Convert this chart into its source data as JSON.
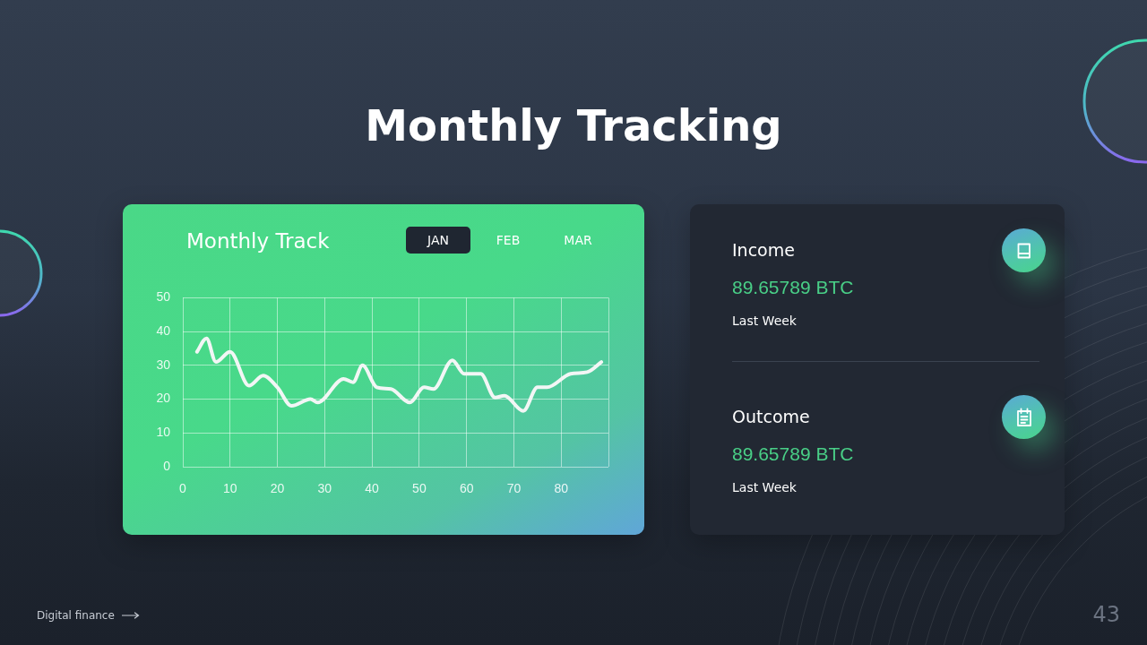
{
  "chart_data": [
    {
      "type": "line",
      "title": "Monthly Tracking",
      "subtitle": "Monthly Track",
      "x": [
        3,
        5,
        7,
        10,
        14,
        17,
        20,
        23,
        27,
        28.5,
        34,
        36,
        38,
        41,
        44,
        48,
        51,
        53,
        57,
        59.5,
        63,
        66,
        68,
        72,
        75,
        77,
        82,
        85.5,
        88.5
      ],
      "series": [
        {
          "color": "#f2f6f5",
          "values": [
            34,
            38,
            31,
            34,
            24,
            27,
            23.5,
            18,
            20,
            19,
            26,
            25,
            30,
            23.5,
            23,
            19,
            23.5,
            23,
            31.5,
            27.5,
            27.5,
            20.5,
            21,
            16.5,
            23.5,
            23.5,
            27.5,
            28,
            31
          ]
        }
      ],
      "xlim": [
        0,
        90
      ],
      "xticks": [
        0,
        10,
        20,
        30,
        40,
        50,
        60,
        70,
        80,
        {
          "value": 90,
          "label": null
        }
      ],
      "ylim": [
        0,
        50
      ],
      "yticks": [
        0,
        10,
        20,
        30,
        40,
        50
      ],
      "grid": true,
      "legend": false,
      "marker": "none",
      "annotations": [
        "JAN",
        "FEB",
        "MAR",
        "Digital finance",
        "43"
      ]
    },
    {
      "type": "other",
      "annotations": [
        "Income",
        "89.65789 BTC",
        "Last Week",
        "Outcome",
        "89.65789 BTC",
        "Last Week"
      ]
    }
  ]
}
